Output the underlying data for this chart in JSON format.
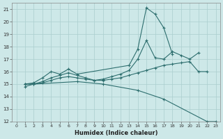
{
  "xlabel": "Humidex (Indice chaleur)",
  "ylabel": "",
  "xlim": [
    -0.5,
    23.5
  ],
  "ylim": [
    12,
    21.5
  ],
  "xticks": [
    0,
    1,
    2,
    3,
    4,
    5,
    6,
    7,
    8,
    9,
    10,
    11,
    12,
    13,
    14,
    15,
    16,
    17,
    18,
    19,
    20,
    21,
    22,
    23
  ],
  "yticks": [
    12,
    13,
    14,
    15,
    16,
    17,
    18,
    19,
    20,
    21
  ],
  "background_color": "#cde8e8",
  "line_color": "#2d6e6e",
  "grid_color": "#aacece",
  "lines": [
    {
      "x": [
        1,
        2,
        3,
        4,
        5,
        6,
        7,
        13,
        14,
        15,
        16,
        17,
        18
      ],
      "y": [
        15.0,
        15.1,
        15.5,
        16.0,
        15.8,
        16.2,
        15.8,
        16.5,
        17.8,
        21.1,
        20.6,
        19.5,
        17.4
      ]
    },
    {
      "x": [
        1,
        2,
        3,
        4,
        5,
        6,
        7,
        8,
        9,
        10,
        11,
        12,
        13,
        14,
        15,
        16,
        17,
        18,
        19,
        20,
        21
      ],
      "y": [
        15.0,
        15.0,
        15.2,
        15.5,
        15.7,
        15.9,
        15.7,
        15.5,
        15.3,
        15.4,
        15.6,
        15.8,
        16.1,
        17.0,
        18.5,
        17.1,
        17.0,
        17.6,
        17.3,
        17.0,
        17.5
      ]
    },
    {
      "x": [
        1,
        2,
        3,
        4,
        5,
        6,
        7,
        8,
        9,
        10,
        11,
        12,
        13,
        14,
        15,
        16,
        17,
        18,
        19,
        20,
        21,
        22
      ],
      "y": [
        15.0,
        15.0,
        15.1,
        15.3,
        15.5,
        15.6,
        15.5,
        15.4,
        15.3,
        15.3,
        15.4,
        15.5,
        15.7,
        15.9,
        16.1,
        16.3,
        16.5,
        16.6,
        16.7,
        16.8,
        16.0,
        16.0
      ]
    },
    {
      "x": [
        1,
        2,
        7,
        10,
        14,
        17,
        22,
        23
      ],
      "y": [
        14.8,
        15.0,
        15.2,
        15.0,
        14.5,
        13.8,
        12.0,
        12.0
      ]
    }
  ]
}
